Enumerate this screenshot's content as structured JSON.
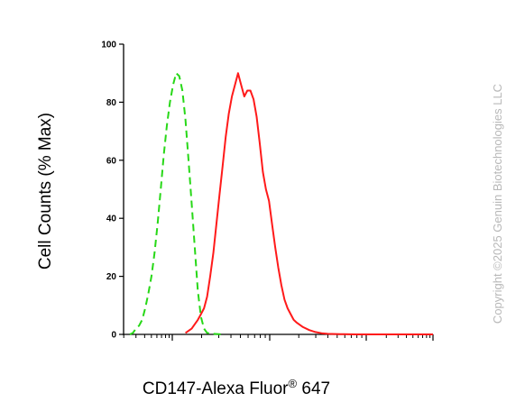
{
  "chart_data": {
    "type": "line",
    "ylabel": "Cell Counts (% Max)",
    "xlabel": "CD147-Alexa Fluor",
    "xlabel_superscript": "®",
    "xlabel_suffix": " 647",
    "yticks": [
      "0",
      "20",
      "40",
      "60",
      "80",
      "100"
    ],
    "ylim": [
      0,
      100
    ],
    "xlim": [
      0,
      100
    ],
    "x_scale": "log",
    "series": [
      {
        "color": "#27d817",
        "style": "dashed",
        "x": [
          2,
          3,
          4,
          5,
          6,
          7,
          8,
          9,
          10,
          11,
          12,
          13,
          14,
          15,
          16,
          17,
          18,
          19,
          20,
          21,
          22,
          23,
          24,
          25,
          26,
          27,
          29,
          32
        ],
        "y": [
          0,
          0.5,
          2,
          3,
          5,
          9,
          14,
          20,
          28,
          38,
          50,
          62,
          72,
          80,
          86,
          90,
          89,
          84,
          74,
          60,
          45,
          30,
          15,
          6,
          2,
          0.5,
          0.2,
          0
        ]
      },
      {
        "color": "#ff1a1a",
        "style": "solid",
        "x": [
          20,
          22,
          24,
          25,
          26,
          27,
          28,
          29,
          30,
          31,
          32,
          33,
          34,
          35,
          36,
          37,
          38,
          39,
          40,
          41,
          42,
          43,
          44,
          45,
          46,
          47,
          48,
          49,
          50,
          51,
          52,
          53,
          54,
          55,
          56,
          58,
          60,
          62,
          64,
          66,
          70,
          75,
          100
        ],
        "y": [
          0.5,
          2,
          5,
          7,
          9,
          13,
          20,
          28,
          38,
          48,
          58,
          68,
          76,
          82,
          86,
          90,
          86,
          82,
          84,
          84,
          81,
          75,
          66,
          56,
          50,
          46,
          38,
          30,
          23,
          17,
          12,
          9,
          7,
          5,
          4,
          2.5,
          1.5,
          0.8,
          0.4,
          0.2,
          0.1,
          0,
          0
        ]
      }
    ]
  },
  "watermark": "Copyright ©2025 Genuin Biotechnologies LLC"
}
